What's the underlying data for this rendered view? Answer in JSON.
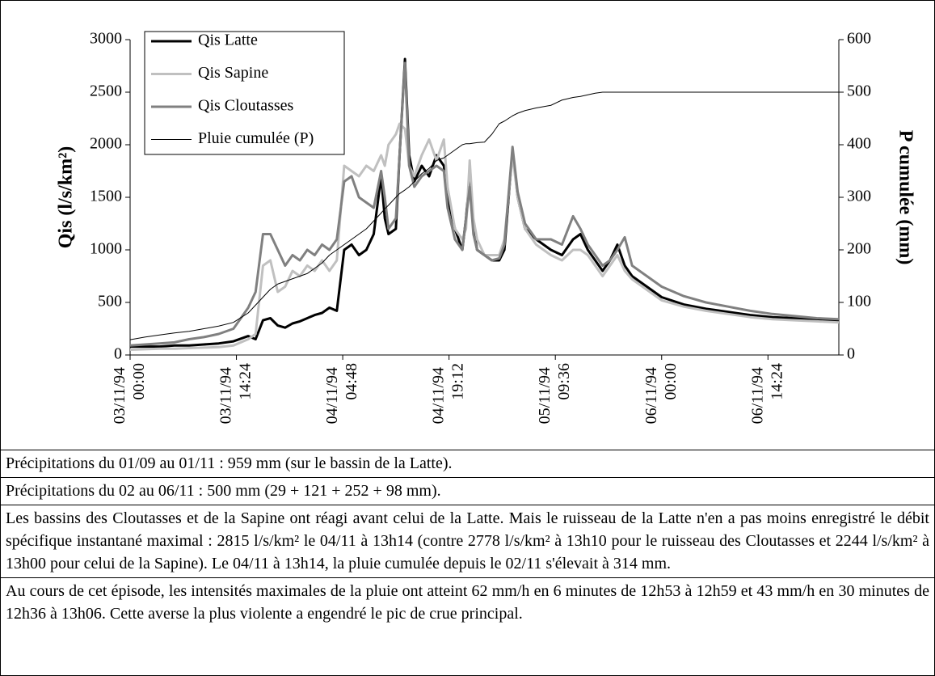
{
  "chart_data": {
    "type": "line",
    "x": [
      0,
      2,
      4,
      6,
      8,
      10,
      12,
      14,
      16,
      17,
      18,
      19,
      20,
      21,
      22,
      23,
      24,
      25,
      26,
      27,
      28,
      29,
      30,
      31,
      32,
      33,
      34,
      34.5,
      35,
      36,
      36.5,
      37.23,
      37.8,
      38.5,
      39.5,
      40.5,
      41.5,
      42.5,
      43,
      44,
      45,
      45.5,
      46,
      46.5,
      47,
      48,
      49,
      50,
      50.7,
      51.8,
      52.5,
      53.5,
      55,
      57,
      58.5,
      60,
      61,
      62,
      63,
      64,
      65,
      66,
      67,
      68,
      70,
      72,
      75,
      78,
      81,
      84,
      87,
      90,
      93,
      96
    ],
    "xlim": [
      0,
      96
    ],
    "xticks": [
      {
        "value": 0,
        "label": "03/11/94 00:00"
      },
      {
        "value": 14.4,
        "label": "03/11/94 14:24"
      },
      {
        "value": 28.8,
        "label": "04/11/94 04:48"
      },
      {
        "value": 43.2,
        "label": "04/11/94 19:12"
      },
      {
        "value": 57.6,
        "label": "05/11/94 09:36"
      },
      {
        "value": 72,
        "label": "06/11/94 00:00"
      },
      {
        "value": 86.4,
        "label": "06/11/94 14:24"
      }
    ],
    "y_label": "Qis (l/s/km²)",
    "y2_label": "P cumulée (mm)",
    "ylim": [
      0,
      3000
    ],
    "yticks": [
      0,
      500,
      1000,
      1500,
      2000,
      2500,
      3000
    ],
    "y2lim": [
      0,
      600
    ],
    "y2ticks": [
      0,
      100,
      200,
      300,
      400,
      500,
      600
    ],
    "legend": "top-left",
    "series": [
      {
        "name": "Qis Latte",
        "color": "#000000",
        "width": 3,
        "values": [
          80,
          80,
          80,
          90,
          90,
          100,
          110,
          130,
          180,
          150,
          330,
          350,
          280,
          260,
          300,
          320,
          350,
          380,
          400,
          450,
          420,
          1000,
          1050,
          950,
          1000,
          1150,
          1700,
          1300,
          1150,
          1200,
          1900,
          2815,
          1900,
          1650,
          1800,
          1700,
          1900,
          1800,
          1500,
          1200,
          1000,
          1300,
          1700,
          1200,
          1000,
          950,
          900,
          900,
          1000,
          1950,
          1500,
          1200,
          1100,
          1000,
          950,
          1100,
          1150,
          1000,
          900,
          800,
          900,
          1050,
          850,
          750,
          650,
          550,
          480,
          440,
          410,
          380,
          360,
          350,
          340,
          320
        ]
      },
      {
        "name": "Qis Sapine",
        "color": "#c0c0c0",
        "width": 3,
        "values": [
          50,
          55,
          60,
          60,
          65,
          70,
          75,
          90,
          150,
          200,
          850,
          900,
          600,
          650,
          800,
          750,
          850,
          800,
          900,
          800,
          900,
          1800,
          1750,
          1700,
          1800,
          1750,
          1900,
          1800,
          2000,
          2100,
          2200,
          2150,
          1800,
          1700,
          1900,
          2050,
          1850,
          2050,
          1600,
          1200,
          1100,
          1200,
          1850,
          1300,
          1100,
          950,
          950,
          950,
          1100,
          1900,
          1500,
          1200,
          1050,
          950,
          900,
          1000,
          1000,
          950,
          850,
          750,
          850,
          950,
          800,
          720,
          620,
          520,
          460,
          420,
          390,
          360,
          340,
          330,
          320,
          310
        ]
      },
      {
        "name": "Qis Cloutasses",
        "color": "#808080",
        "width": 3,
        "values": [
          90,
          100,
          110,
          120,
          150,
          170,
          200,
          250,
          450,
          600,
          1150,
          1150,
          1000,
          850,
          950,
          900,
          1000,
          950,
          1050,
          1000,
          1100,
          1650,
          1700,
          1500,
          1450,
          1400,
          1750,
          1500,
          1200,
          1300,
          1900,
          2778,
          1800,
          1600,
          1700,
          1750,
          1800,
          1750,
          1400,
          1100,
          1000,
          1300,
          1600,
          1150,
          1000,
          950,
          900,
          920,
          1050,
          1980,
          1550,
          1250,
          1100,
          1100,
          1050,
          1320,
          1200,
          1050,
          950,
          850,
          900,
          1000,
          1120,
          850,
          750,
          650,
          560,
          500,
          460,
          420,
          390,
          370,
          350,
          340
        ]
      },
      {
        "name": "Pluie cumulée (P)",
        "color": "#000000",
        "width": 1,
        "axis": "y2",
        "values": [
          29,
          34,
          38,
          42,
          45,
          50,
          55,
          62,
          80,
          95,
          110,
          125,
          135,
          140,
          145,
          150,
          155,
          165,
          175,
          190,
          200,
          210,
          220,
          230,
          240,
          255,
          270,
          278,
          285,
          300,
          307,
          314,
          320,
          330,
          345,
          355,
          370,
          375,
          380,
          390,
          400,
          402,
          402,
          403,
          404,
          405,
          420,
          440,
          445,
          455,
          460,
          465,
          470,
          475,
          485,
          490,
          492,
          495,
          498,
          500,
          500,
          500,
          500,
          500,
          500,
          500,
          500,
          500,
          500,
          500,
          500,
          500,
          500,
          500
        ]
      }
    ]
  },
  "notes": [
    "Précipitations du 01/09 au 01/11 : 959 mm (sur le bassin de la Latte).",
    "Précipitations du 02 au 06/11 : 500 mm (29 + 121 + 252 + 98 mm).",
    "Les bassins des Cloutasses et de la Sapine ont réagi avant celui de la Latte. Mais le ruisseau de la Latte n'en a pas moins enregistré le débit spécifique instantané maximal : 2815 l/s/km² le 04/11 à 13h14 (contre 2778 l/s/km² à 13h10 pour le ruisseau des Cloutasses et 2244 l/s/km² à 13h00 pour celui de la Sapine). Le 04/11 à 13h14, la pluie cumulée depuis le 02/11 s'élevait à 314 mm.",
    "Au cours de cet épisode, les intensités maximales de la pluie ont atteint 62 mm/h en 6 minutes de 12h53 à 12h59 et 43 mm/h en 30 minutes de 12h36 à 13h06. Cette averse la plus violente a engendré le pic de crue principal."
  ]
}
